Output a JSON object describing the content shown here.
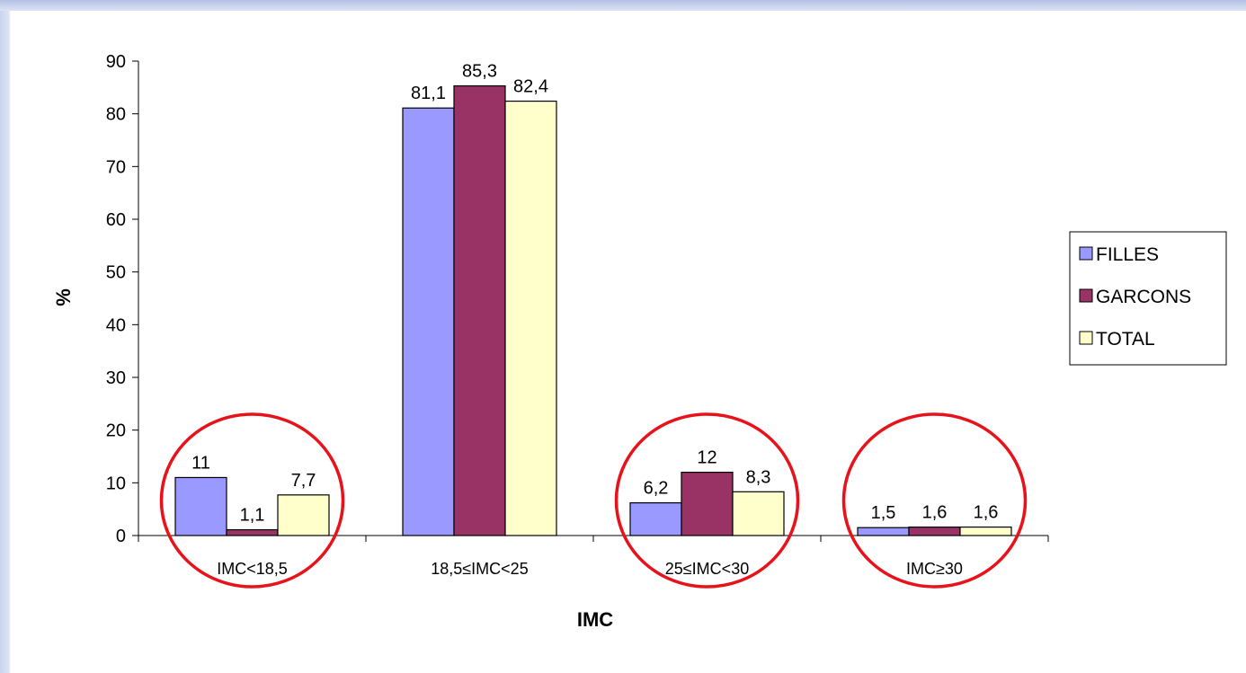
{
  "chart_data": {
    "type": "bar",
    "categories": [
      "IMC<18,5",
      "18,5≤IMC<25",
      "25≤IMC<30",
      "IMC≥30"
    ],
    "series": [
      {
        "name": "FILLES",
        "values": [
          11,
          81.1,
          6.2,
          1.5
        ],
        "labels": [
          "11",
          "81,1",
          "6,2",
          "1,5"
        ]
      },
      {
        "name": "GARCONS",
        "values": [
          1.1,
          85.3,
          12,
          1.6
        ],
        "labels": [
          "1,1",
          "85,3",
          "12",
          "1,6"
        ]
      },
      {
        "name": "TOTAL",
        "values": [
          7.7,
          82.4,
          8.3,
          1.6
        ],
        "labels": [
          "7,7",
          "82,4",
          "8,3",
          "1,6"
        ]
      }
    ],
    "title": "",
    "xlabel": "IMC",
    "ylabel": "%",
    "ylim": [
      0,
      90
    ],
    "yticks": [
      "0",
      "10",
      "20",
      "30",
      "40",
      "50",
      "60",
      "70",
      "80",
      "90"
    ],
    "grid": false,
    "legend_position": "right",
    "highlighted_categories": [
      "IMC<18,5",
      "25≤IMC<30",
      "IMC≥30"
    ]
  },
  "colors": {
    "FILLES": "#9999ff",
    "GARCONS": "#993366",
    "TOTAL": "#ffffcc",
    "highlight_circle": "#e8131a"
  }
}
